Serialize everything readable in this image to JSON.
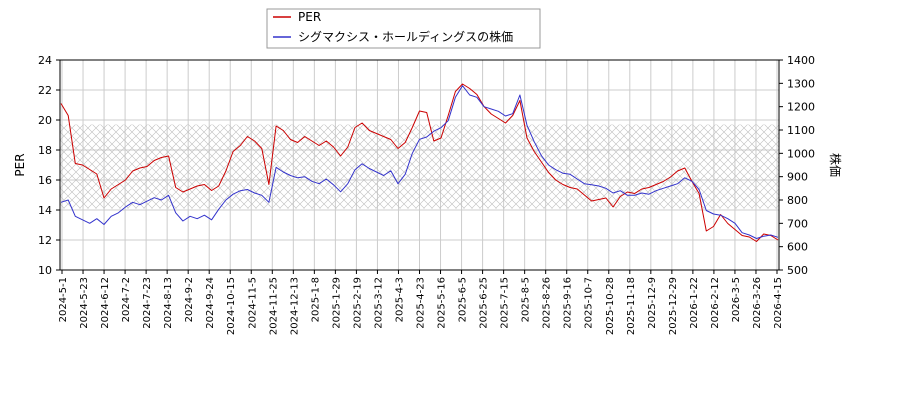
{
  "chart_data": {
    "type": "line",
    "legend": {
      "placement": "top-center",
      "entries": [
        {
          "name": "PER",
          "color": "#cc0000"
        },
        {
          "name": "シグマクシス・ホールディングスの株価",
          "color": "#3333cc"
        }
      ]
    },
    "y_left": {
      "label": "PER",
      "ylim": [
        10,
        24
      ],
      "ticks": [
        "10",
        "12",
        "14",
        "16",
        "18",
        "20",
        "22",
        "24"
      ]
    },
    "y_right": {
      "label": "株価",
      "ylim": [
        500,
        1400
      ],
      "ticks": [
        "500",
        "600",
        "700",
        "800",
        "900",
        "1000",
        "1100",
        "1200",
        "1300",
        "1400"
      ]
    },
    "x_ticks": [
      "2024-5-1",
      "2024-5-23",
      "2024-6-12",
      "2024-7-2",
      "2024-7-23",
      "2024-8-13",
      "2024-9-2",
      "2024-9-24",
      "2024-10-15",
      "2024-11-5",
      "2024-11-25",
      "2024-12-13",
      "2025-1-8",
      "2025-1-29",
      "2025-2-19",
      "2025-3-12",
      "2025-4-3",
      "2025-4-23",
      "2025-5-16",
      "2025-6-5",
      "2025-6-25",
      "2025-7-15",
      "2025-8-5",
      "2025-8-26",
      "2025-9-16",
      "2025-10-7",
      "2025-10-28",
      "2025-11-18",
      "2025-12-9",
      "2025-12-29",
      "2026-1-22",
      "2026-2-12",
      "2026-3-5",
      "2026-3-26",
      "2026-4-15"
    ],
    "grid": true,
    "hatched_band": {
      "axis": "left",
      "from": 14.1,
      "to": 19.7
    },
    "series": [
      {
        "name": "PER",
        "axis": "left",
        "color": "#cc0000",
        "values": [
          21.1,
          20.3,
          17.1,
          17.0,
          16.7,
          16.4,
          14.8,
          15.4,
          15.7,
          16.0,
          16.6,
          16.8,
          16.9,
          17.3,
          17.5,
          17.6,
          15.5,
          15.2,
          15.4,
          15.6,
          15.7,
          15.3,
          15.6,
          16.6,
          17.9,
          18.3,
          18.9,
          18.6,
          18.1,
          15.7,
          19.6,
          19.3,
          18.7,
          18.5,
          18.9,
          18.6,
          18.3,
          18.6,
          18.2,
          17.6,
          18.2,
          19.5,
          19.8,
          19.3,
          19.1,
          18.9,
          18.7,
          18.1,
          18.5,
          19.5,
          20.6,
          20.5,
          18.6,
          18.8,
          20.3,
          21.9,
          22.4,
          22.1,
          21.7,
          20.9,
          20.4,
          20.1,
          19.8,
          20.3,
          21.3,
          18.8,
          17.9,
          17.2,
          16.5,
          16.0,
          15.7,
          15.5,
          15.4,
          15.0,
          14.6,
          14.7,
          14.8,
          14.2,
          14.9,
          15.2,
          15.1,
          15.4,
          15.5,
          15.7,
          15.9,
          16.2,
          16.6,
          16.8,
          15.9,
          15.1,
          12.6,
          12.9,
          13.7,
          13.1,
          12.7,
          12.3,
          12.2,
          11.9,
          12.4,
          12.3,
          12.0
        ]
      },
      {
        "name": "シグマクシス・ホールディングスの株価",
        "axis": "right",
        "color": "#3333cc",
        "values": [
          790,
          800,
          730,
          715,
          700,
          720,
          695,
          730,
          745,
          770,
          790,
          780,
          795,
          810,
          800,
          820,
          745,
          710,
          730,
          720,
          735,
          715,
          760,
          800,
          825,
          840,
          845,
          830,
          820,
          790,
          940,
          920,
          905,
          895,
          900,
          880,
          870,
          890,
          865,
          835,
          870,
          930,
          955,
          935,
          920,
          905,
          925,
          870,
          910,
          1000,
          1060,
          1070,
          1095,
          1110,
          1140,
          1240,
          1290,
          1250,
          1240,
          1200,
          1190,
          1180,
          1160,
          1170,
          1250,
          1120,
          1050,
          990,
          950,
          930,
          915,
          910,
          890,
          870,
          865,
          860,
          850,
          830,
          840,
          820,
          820,
          830,
          825,
          840,
          850,
          860,
          870,
          895,
          880,
          845,
          755,
          740,
          735,
          720,
          700,
          660,
          650,
          635,
          645,
          650,
          640
        ]
      }
    ]
  }
}
